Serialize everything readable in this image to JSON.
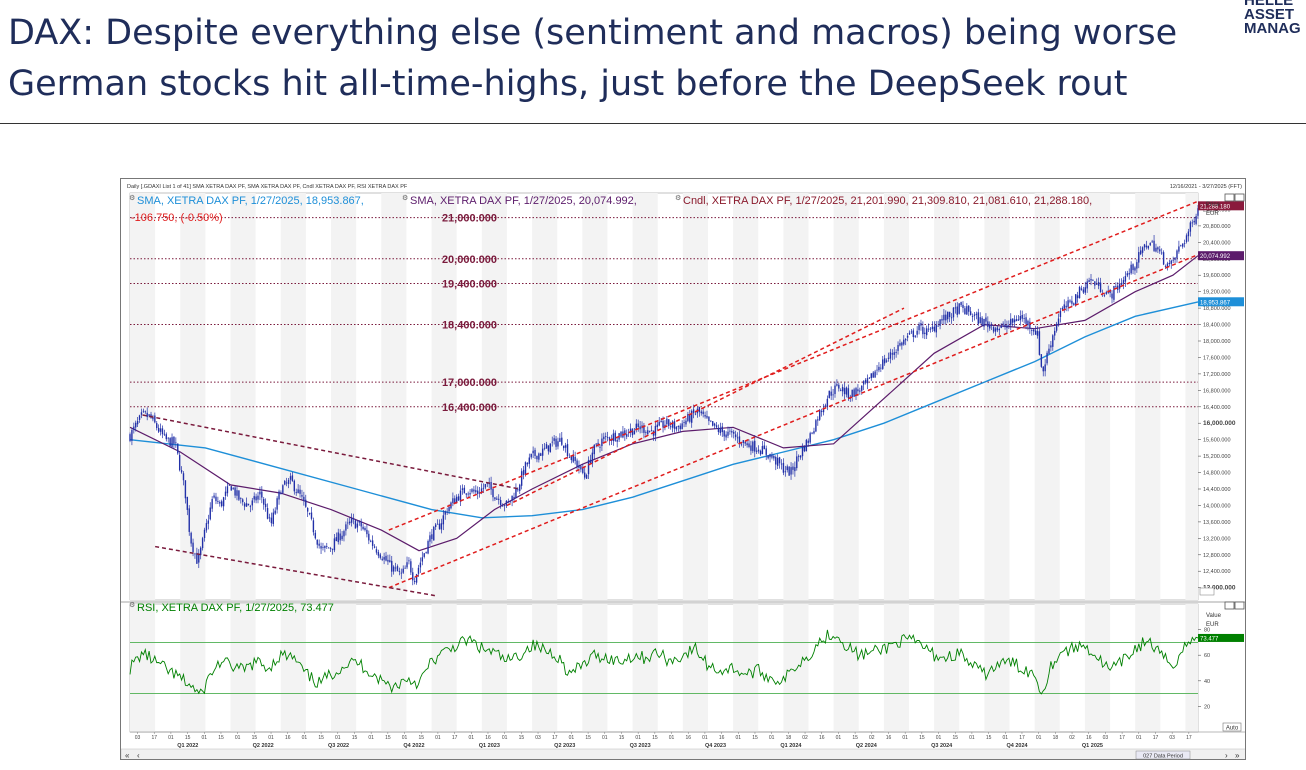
{
  "slide": {
    "title_line1": "DAX: Despite everything else (sentiment and macros) being worse",
    "title_line2": "German stocks hit all-time-highs, just before the DeepSeek rout",
    "brand_lines": [
      "HELLE",
      "ASSET",
      "MANAG"
    ]
  },
  "colors": {
    "title": "#1f2d5a",
    "sma200": "#1e8fd8",
    "sma50": "#5c1c6b",
    "candles": "#2130a8",
    "channel": "#e01c1c",
    "downtrend": "#7a1a3c",
    "levels": "#7a1a3c",
    "rsi": "#008000",
    "band": "#4caf50"
  },
  "chart_data": [
    {
      "type": "candlestick",
      "title": "DAX index with SMA overlays",
      "header_small": "Daily [.GDAXI List 1 of 41] SMA XETRA DAX PF, SMA XETRA DAX PF, Cndl XETRA DAX PF, RSI XETRA DAX PF",
      "date_range": "12/16/2021 - 3/27/2025 (FFT)",
      "legend": {
        "sma200": "SMA, XETRA DAX PF, 1/27/2025, 18,953.867,",
        "sma50": "SMA, XETRA DAX PF, 1/27/2025, 20,074.992,",
        "cndl": "Cndl, XETRA DAX PF, 1/27/2025, 21,201.990, 21,309.810, 21,081.610, 21,288.180,",
        "change": "-106.750, (-0.50%)"
      },
      "axis_title": [
        "Price",
        "EUR"
      ],
      "y_ticks": [
        12000,
        12400,
        12800,
        13200,
        13600,
        14000,
        14400,
        14800,
        15200,
        15600,
        16000,
        16400,
        16800,
        17200,
        17600,
        18000,
        18400,
        18800,
        19200,
        19600,
        20000,
        20400,
        20800,
        21200
      ],
      "y_tick_labels": [
        "12,000.000",
        "12,400.000",
        "12,800.000",
        "13,200.000",
        "13,600.000",
        "14,000.000",
        "14,400.000",
        "14,800.000",
        "15,200.000",
        "15,600.000",
        "16,000.000",
        "16,400.000",
        "16,800.000",
        "17,200.000",
        "17,600.000",
        "18,000.000",
        "18,400.000",
        "18,800.000",
        "19,200.000",
        "19,600.000",
        "20,000.000",
        "20,400.000",
        "20,800.000",
        "21,200.000"
      ],
      "ylim": [
        11700,
        21600
      ],
      "x_range_months": [
        0,
        40
      ],
      "horizontal_levels": [
        {
          "value": 21000,
          "label": "21,000.000"
        },
        {
          "value": 20000,
          "label": "20,000.000"
        },
        {
          "value": 19400,
          "label": "19,400.000"
        },
        {
          "value": 18400,
          "label": "18,400.000"
        },
        {
          "value": 17000,
          "label": "17,000.000"
        },
        {
          "value": 16400,
          "label": "16,400.000"
        }
      ],
      "last_values": [
        {
          "label": "21,288.180",
          "value": 21288,
          "series": "cndl"
        },
        {
          "label": "20,074.992",
          "value": 20075,
          "series": "sma50"
        },
        {
          "label": "18,953.867",
          "value": 18954,
          "series": "sma200"
        }
      ],
      "close_path": [
        [
          0.0,
          15700
        ],
        [
          0.5,
          16200
        ],
        [
          0.8,
          16150
        ],
        [
          1.4,
          15600
        ],
        [
          1.8,
          15500
        ],
        [
          2.2,
          14300
        ],
        [
          2.4,
          13200
        ],
        [
          2.7,
          12600
        ],
        [
          3.0,
          13400
        ],
        [
          3.3,
          14200
        ],
        [
          3.6,
          14000
        ],
        [
          4.0,
          14500
        ],
        [
          4.4,
          14100
        ],
        [
          4.8,
          14000
        ],
        [
          5.2,
          14300
        ],
        [
          5.6,
          13500
        ],
        [
          6.0,
          14400
        ],
        [
          6.4,
          14600
        ],
        [
          6.8,
          14200
        ],
        [
          7.2,
          13600
        ],
        [
          7.6,
          12900
        ],
        [
          8.0,
          13000
        ],
        [
          8.4,
          13300
        ],
        [
          8.8,
          13600
        ],
        [
          9.2,
          13500
        ],
        [
          9.6,
          13100
        ],
        [
          10.0,
          12800
        ],
        [
          10.4,
          12500
        ],
        [
          10.8,
          12300
        ],
        [
          11.1,
          12600
        ],
        [
          11.3,
          12200
        ],
        [
          11.6,
          12700
        ],
        [
          12.0,
          13300
        ],
        [
          12.3,
          13500
        ],
        [
          12.6,
          13900
        ],
        [
          13.0,
          14200
        ],
        [
          13.4,
          14400
        ],
        [
          13.8,
          14300
        ],
        [
          14.2,
          14500
        ],
        [
          14.6,
          14200
        ],
        [
          15.0,
          14000
        ],
        [
          15.4,
          14400
        ],
        [
          15.7,
          14900
        ],
        [
          16.0,
          15200
        ],
        [
          16.4,
          15300
        ],
        [
          16.8,
          15500
        ],
        [
          17.2,
          15600
        ],
        [
          17.5,
          15200
        ],
        [
          17.8,
          15000
        ],
        [
          18.1,
          14700
        ],
        [
          18.4,
          15300
        ],
        [
          18.8,
          15600
        ],
        [
          19.3,
          15700
        ],
        [
          19.8,
          15800
        ],
        [
          20.3,
          15900
        ],
        [
          20.8,
          15800
        ],
        [
          21.3,
          16000
        ],
        [
          21.8,
          15900
        ],
        [
          22.2,
          16100
        ],
        [
          22.6,
          16300
        ],
        [
          23.0,
          16000
        ],
        [
          23.5,
          15800
        ],
        [
          24.0,
          15700
        ],
        [
          24.5,
          15500
        ],
        [
          25.0,
          15400
        ],
        [
          25.5,
          15200
        ],
        [
          26.0,
          14900
        ],
        [
          26.3,
          14800
        ],
        [
          26.6,
          15200
        ],
        [
          27.0,
          15600
        ],
        [
          27.4,
          16200
        ],
        [
          27.8,
          16700
        ],
        [
          28.2,
          16900
        ],
        [
          28.6,
          16700
        ],
        [
          29.0,
          16800
        ],
        [
          29.4,
          17000
        ],
        [
          29.8,
          17400
        ],
        [
          30.2,
          17600
        ],
        [
          30.6,
          17900
        ],
        [
          31.0,
          18100
        ],
        [
          31.4,
          18300
        ],
        [
          31.8,
          18200
        ],
        [
          32.2,
          18500
        ],
        [
          32.6,
          18600
        ],
        [
          33.0,
          18800
        ],
        [
          33.4,
          18700
        ],
        [
          33.8,
          18500
        ],
        [
          34.2,
          18400
        ],
        [
          34.6,
          18300
        ],
        [
          35.0,
          18400
        ],
        [
          35.4,
          18600
        ],
        [
          35.8,
          18400
        ],
        [
          36.1,
          18200
        ],
        [
          36.3,
          17200
        ],
        [
          36.6,
          17900
        ],
        [
          37.0,
          18700
        ],
        [
          37.4,
          18900
        ],
        [
          37.8,
          19200
        ],
        [
          38.2,
          19500
        ],
        [
          38.6,
          19300
        ],
        [
          39.0,
          19100
        ],
        [
          39.4,
          19400
        ],
        [
          39.8,
          19700
        ],
        [
          40.2,
          20100
        ],
        [
          40.5,
          20400
        ],
        [
          40.8,
          20300
        ],
        [
          41.1,
          20000
        ],
        [
          41.4,
          19800
        ],
        [
          41.7,
          20200
        ],
        [
          42.0,
          20500
        ],
        [
          42.3,
          20900
        ],
        [
          42.5,
          21300
        ]
      ],
      "sma200_path": [
        [
          0.0,
          15600
        ],
        [
          3.0,
          15400
        ],
        [
          6.0,
          14900
        ],
        [
          9.0,
          14400
        ],
        [
          12.0,
          13900
        ],
        [
          14.0,
          13700
        ],
        [
          16.0,
          13750
        ],
        [
          18.0,
          13900
        ],
        [
          20.0,
          14200
        ],
        [
          22.0,
          14600
        ],
        [
          24.0,
          15000
        ],
        [
          26.0,
          15300
        ],
        [
          28.0,
          15600
        ],
        [
          30.0,
          16000
        ],
        [
          32.0,
          16500
        ],
        [
          34.0,
          17000
        ],
        [
          36.0,
          17500
        ],
        [
          38.0,
          18100
        ],
        [
          40.0,
          18600
        ],
        [
          42.5,
          18950
        ]
      ],
      "sma50_path": [
        [
          0.0,
          15900
        ],
        [
          2.0,
          15300
        ],
        [
          4.0,
          14500
        ],
        [
          6.0,
          14300
        ],
        [
          8.0,
          13900
        ],
        [
          10.0,
          13400
        ],
        [
          11.5,
          12900
        ],
        [
          13.0,
          13200
        ],
        [
          14.5,
          13900
        ],
        [
          16.0,
          14400
        ],
        [
          18.0,
          15000
        ],
        [
          20.0,
          15500
        ],
        [
          22.0,
          15800
        ],
        [
          24.0,
          15900
        ],
        [
          26.0,
          15400
        ],
        [
          28.0,
          15500
        ],
        [
          30.0,
          16600
        ],
        [
          32.0,
          17700
        ],
        [
          34.0,
          18400
        ],
        [
          36.0,
          18300
        ],
        [
          38.0,
          18500
        ],
        [
          40.0,
          19200
        ],
        [
          41.5,
          19600
        ],
        [
          42.5,
          20075
        ]
      ],
      "trend_lines": [
        {
          "name": "upper-channel",
          "style": "red-dashed",
          "from": [
            10.3,
            13400
          ],
          "to": [
            42.5,
            21400
          ]
        },
        {
          "name": "lower-channel",
          "style": "red-dashed",
          "from": [
            10.3,
            12000
          ],
          "to": [
            42.5,
            20100
          ]
        },
        {
          "name": "mid-channel",
          "style": "red-dashed",
          "from": [
            15.0,
            14000
          ],
          "to": [
            30.8,
            18800
          ]
        },
        {
          "name": "downtrend-upper",
          "style": "maroon-dashed",
          "from": [
            0.5,
            16200
          ],
          "to": [
            15.5,
            14400
          ]
        },
        {
          "name": "downtrend-lower",
          "style": "maroon-dashed",
          "from": [
            1.0,
            13000
          ],
          "to": [
            12.2,
            11800
          ]
        }
      ]
    },
    {
      "type": "line",
      "title": "RSI",
      "legend": "RSI, XETRA DAX PF, 1/27/2025, 73.477",
      "axis_title": [
        "Value",
        "EUR"
      ],
      "y_ticks": [
        20,
        40,
        60,
        80
      ],
      "ylim": [
        0,
        100
      ],
      "bands": [
        70,
        30
      ],
      "last_value_label": "73.477",
      "last_value": 73.477,
      "auto_label": "Auto",
      "series_path": [
        [
          0.0,
          50
        ],
        [
          0.5,
          62
        ],
        [
          1.0,
          55
        ],
        [
          1.5,
          48
        ],
        [
          2.0,
          42
        ],
        [
          2.5,
          35
        ],
        [
          2.8,
          28
        ],
        [
          3.2,
          45
        ],
        [
          3.6,
          55
        ],
        [
          4.0,
          52
        ],
        [
          4.5,
          48
        ],
        [
          5.0,
          55
        ],
        [
          5.5,
          50
        ],
        [
          6.0,
          60
        ],
        [
          6.5,
          58
        ],
        [
          7.0,
          45
        ],
        [
          7.5,
          38
        ],
        [
          8.0,
          45
        ],
        [
          8.5,
          52
        ],
        [
          9.0,
          55
        ],
        [
          9.5,
          48
        ],
        [
          10.0,
          40
        ],
        [
          10.5,
          35
        ],
        [
          11.0,
          42
        ],
        [
          11.5,
          38
        ],
        [
          12.0,
          55
        ],
        [
          12.5,
          62
        ],
        [
          13.0,
          68
        ],
        [
          13.5,
          72
        ],
        [
          14.0,
          65
        ],
        [
          14.5,
          62
        ],
        [
          15.0,
          55
        ],
        [
          15.5,
          60
        ],
        [
          16.0,
          68
        ],
        [
          16.5,
          64
        ],
        [
          17.0,
          60
        ],
        [
          17.5,
          45
        ],
        [
          18.0,
          52
        ],
        [
          18.5,
          60
        ],
        [
          19.0,
          58
        ],
        [
          19.5,
          55
        ],
        [
          20.0,
          60
        ],
        [
          20.5,
          58
        ],
        [
          21.0,
          62
        ],
        [
          21.5,
          55
        ],
        [
          22.0,
          60
        ],
        [
          22.5,
          65
        ],
        [
          23.0,
          52
        ],
        [
          23.5,
          48
        ],
        [
          24.0,
          50
        ],
        [
          24.5,
          45
        ],
        [
          25.0,
          48
        ],
        [
          25.5,
          42
        ],
        [
          26.0,
          40
        ],
        [
          26.5,
          52
        ],
        [
          27.0,
          60
        ],
        [
          27.5,
          72
        ],
        [
          28.0,
          78
        ],
        [
          28.5,
          68
        ],
        [
          29.0,
          60
        ],
        [
          29.5,
          62
        ],
        [
          30.0,
          65
        ],
        [
          30.5,
          70
        ],
        [
          31.0,
          72
        ],
        [
          31.5,
          68
        ],
        [
          32.0,
          60
        ],
        [
          32.5,
          58
        ],
        [
          33.0,
          62
        ],
        [
          33.5,
          52
        ],
        [
          34.0,
          45
        ],
        [
          34.5,
          52
        ],
        [
          35.0,
          55
        ],
        [
          35.5,
          50
        ],
        [
          36.0,
          45
        ],
        [
          36.3,
          30
        ],
        [
          36.6,
          50
        ],
        [
          37.0,
          62
        ],
        [
          37.5,
          65
        ],
        [
          38.0,
          68
        ],
        [
          38.5,
          58
        ],
        [
          39.0,
          48
        ],
        [
          39.5,
          55
        ],
        [
          40.0,
          65
        ],
        [
          40.5,
          72
        ],
        [
          41.0,
          60
        ],
        [
          41.5,
          52
        ],
        [
          42.0,
          68
        ],
        [
          42.5,
          73.5
        ]
      ],
      "x_axis": {
        "day_ticks": [
          "03",
          "17",
          "01",
          "15",
          "01",
          "15",
          "01",
          "15",
          "01",
          "16",
          "01",
          "15",
          "01",
          "15",
          "01",
          "15",
          "01",
          "15",
          "01",
          "17",
          "01",
          "16",
          "01",
          "15",
          "03",
          "17",
          "01",
          "15",
          "01",
          "15",
          "01",
          "15",
          "01",
          "16",
          "01",
          "16",
          "01",
          "15",
          "01",
          "18",
          "02",
          "16",
          "01",
          "15",
          "02",
          "16",
          "01",
          "15",
          "01",
          "15",
          "01",
          "15",
          "01",
          "17",
          "01",
          "18",
          "02",
          "16",
          "03",
          "17",
          "01",
          "17",
          "03",
          "17"
        ],
        "quarters": [
          {
            "label": "Q1 2022",
            "month": 2.3
          },
          {
            "label": "Q2 2022",
            "month": 5.3
          },
          {
            "label": "Q3 2022",
            "month": 8.3
          },
          {
            "label": "Q4 2022",
            "month": 11.3
          },
          {
            "label": "Q1 2023",
            "month": 14.3
          },
          {
            "label": "Q2 2023",
            "month": 17.3
          },
          {
            "label": "Q3 2023",
            "month": 20.3
          },
          {
            "label": "Q4 2023",
            "month": 23.3
          },
          {
            "label": "Q1 2024",
            "month": 26.3
          },
          {
            "label": "Q2 2024",
            "month": 29.3
          },
          {
            "label": "Q3 2024",
            "month": 32.3
          },
          {
            "label": "Q4 2024",
            "month": 35.3
          },
          {
            "label": "Q1 2025",
            "month": 38.3
          }
        ],
        "data_period_label": "027 Data Period"
      }
    }
  ]
}
